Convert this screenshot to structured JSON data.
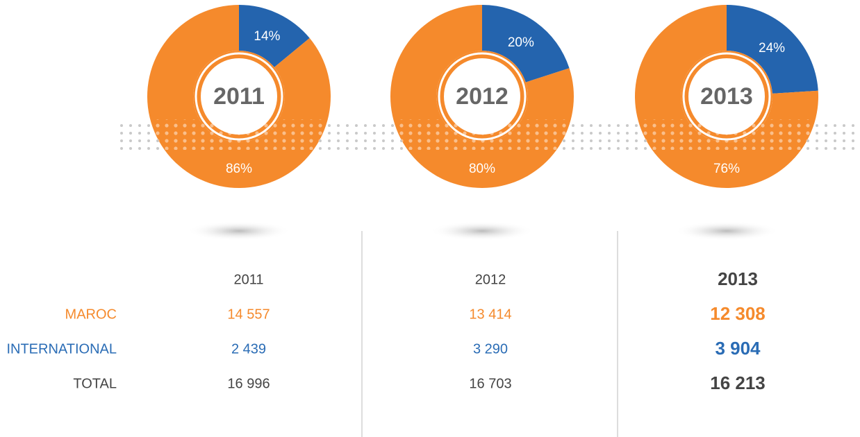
{
  "chart_data": [
    {
      "type": "pie",
      "title": "2011",
      "values": [
        14,
        86
      ],
      "value_labels": [
        "14%",
        "86%"
      ],
      "colors": [
        "#2464ae",
        "#f58a2c"
      ]
    },
    {
      "type": "pie",
      "title": "2012",
      "values": [
        20,
        80
      ],
      "value_labels": [
        "20%",
        "80%"
      ],
      "colors": [
        "#2464ae",
        "#f58a2c"
      ]
    },
    {
      "type": "pie",
      "title": "2013",
      "values": [
        24,
        76
      ],
      "value_labels": [
        "24%",
        "76%"
      ],
      "colors": [
        "#2464ae",
        "#f58a2c"
      ]
    }
  ],
  "table": {
    "header": [
      "2011",
      "2012",
      "2013"
    ],
    "rows": [
      {
        "label": "MAROC",
        "color": "#f58a2c",
        "cells": [
          "14 557",
          "13 414",
          "12 308"
        ]
      },
      {
        "label": "INTERNATIONAL",
        "color": "#2a6cb5",
        "cells": [
          "2 439",
          "3 290",
          "3 904"
        ]
      },
      {
        "label": "TOTAL",
        "color": "#444444",
        "cells": [
          "16 996",
          "16 703",
          "16 213"
        ]
      }
    ]
  }
}
